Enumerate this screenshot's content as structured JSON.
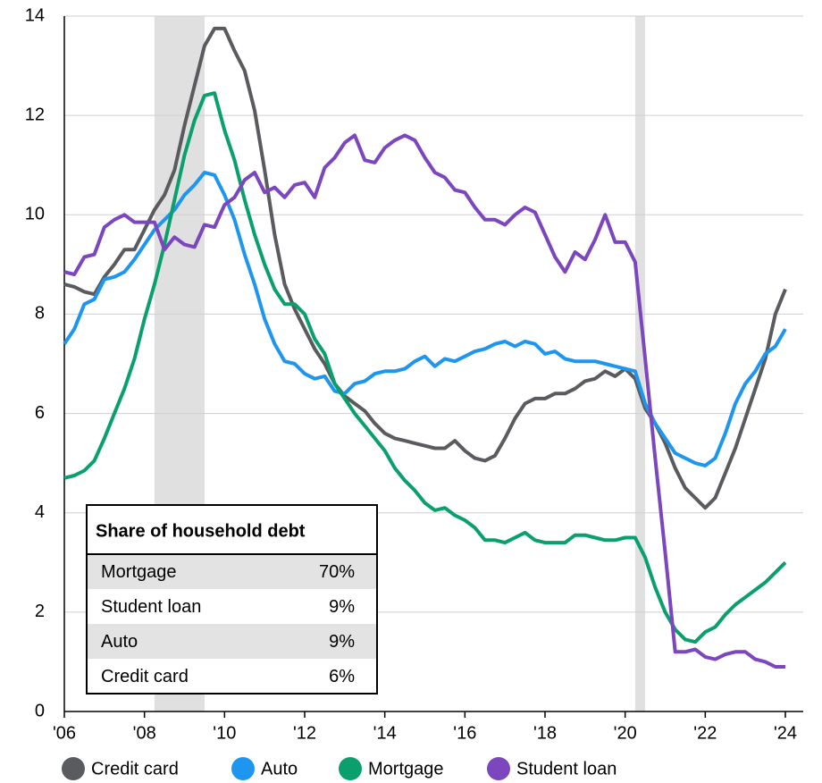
{
  "chart_data": {
    "type": "line",
    "x": [
      2006,
      2006.25,
      2006.5,
      2006.75,
      2007,
      2007.25,
      2007.5,
      2007.75,
      2008,
      2008.25,
      2008.5,
      2008.75,
      2009,
      2009.25,
      2009.5,
      2009.75,
      2010,
      2010.25,
      2010.5,
      2010.75,
      2011,
      2011.25,
      2011.5,
      2011.75,
      2012,
      2012.25,
      2012.5,
      2012.75,
      2013,
      2013.25,
      2013.5,
      2013.75,
      2014,
      2014.25,
      2014.5,
      2014.75,
      2015,
      2015.25,
      2015.5,
      2015.75,
      2016,
      2016.25,
      2016.5,
      2016.75,
      2017,
      2017.25,
      2017.5,
      2017.75,
      2018,
      2018.25,
      2018.5,
      2018.75,
      2019,
      2019.25,
      2019.5,
      2019.75,
      2020,
      2020.25,
      2020.5,
      2020.75,
      2021,
      2021.25,
      2021.5,
      2021.75,
      2022,
      2022.25,
      2022.5,
      2022.75,
      2023,
      2023.25,
      2023.5,
      2023.75,
      2024
    ],
    "series": [
      {
        "name": "Credit card",
        "color": "#595b5e",
        "values": [
          8.6,
          8.55,
          8.45,
          8.4,
          8.75,
          9.0,
          9.3,
          9.3,
          9.7,
          10.1,
          10.4,
          10.9,
          11.8,
          12.6,
          13.4,
          13.75,
          13.75,
          13.3,
          12.9,
          12.1,
          10.9,
          9.6,
          8.6,
          8.1,
          7.7,
          7.3,
          7.0,
          6.6,
          6.35,
          6.2,
          6.05,
          5.8,
          5.6,
          5.5,
          5.45,
          5.4,
          5.35,
          5.3,
          5.3,
          5.45,
          5.25,
          5.1,
          5.05,
          5.15,
          5.5,
          5.9,
          6.2,
          6.3,
          6.3,
          6.4,
          6.4,
          6.5,
          6.65,
          6.7,
          6.85,
          6.75,
          6.9,
          6.7,
          6.1,
          5.8,
          5.4,
          4.9,
          4.5,
          4.3,
          4.1,
          4.3,
          4.8,
          5.3,
          5.9,
          6.5,
          7.1,
          8.0,
          8.5
        ]
      },
      {
        "name": "Auto",
        "color": "#1e96f0",
        "values": [
          7.4,
          7.7,
          8.2,
          8.3,
          8.7,
          8.75,
          8.85,
          9.1,
          9.4,
          9.7,
          9.9,
          10.1,
          10.4,
          10.6,
          10.85,
          10.8,
          10.4,
          9.9,
          9.2,
          8.6,
          7.9,
          7.4,
          7.05,
          7.0,
          6.8,
          6.7,
          6.75,
          6.45,
          6.4,
          6.6,
          6.65,
          6.8,
          6.85,
          6.85,
          6.9,
          7.05,
          7.15,
          6.95,
          7.1,
          7.05,
          7.15,
          7.25,
          7.3,
          7.4,
          7.45,
          7.35,
          7.45,
          7.4,
          7.2,
          7.25,
          7.1,
          7.05,
          7.05,
          7.05,
          7.0,
          6.95,
          6.9,
          6.85,
          6.2,
          5.8,
          5.5,
          5.2,
          5.1,
          5.0,
          4.95,
          5.1,
          5.6,
          6.2,
          6.6,
          6.85,
          7.2,
          7.35,
          7.7
        ]
      },
      {
        "name": "Mortgage",
        "color": "#0aa06e",
        "values": [
          4.7,
          4.75,
          4.85,
          5.05,
          5.5,
          6.0,
          6.5,
          7.1,
          7.9,
          8.6,
          9.4,
          10.3,
          11.2,
          11.9,
          12.4,
          12.45,
          11.7,
          11.1,
          10.3,
          9.6,
          9.0,
          8.5,
          8.2,
          8.2,
          8.0,
          7.5,
          7.2,
          6.6,
          6.3,
          6.0,
          5.75,
          5.5,
          5.25,
          4.9,
          4.65,
          4.45,
          4.2,
          4.05,
          4.1,
          3.95,
          3.85,
          3.7,
          3.45,
          3.45,
          3.4,
          3.5,
          3.6,
          3.45,
          3.4,
          3.4,
          3.4,
          3.55,
          3.55,
          3.5,
          3.45,
          3.45,
          3.5,
          3.5,
          3.1,
          2.5,
          2.0,
          1.65,
          1.45,
          1.4,
          1.6,
          1.7,
          1.95,
          2.15,
          2.3,
          2.45,
          2.6,
          2.8,
          3.0
        ]
      },
      {
        "name": "Student loan",
        "color": "#7b46be",
        "values": [
          8.85,
          8.8,
          9.15,
          9.2,
          9.75,
          9.9,
          10.0,
          9.85,
          9.85,
          9.85,
          9.3,
          9.55,
          9.4,
          9.35,
          9.8,
          9.75,
          10.2,
          10.35,
          10.7,
          10.85,
          10.45,
          10.55,
          10.35,
          10.6,
          10.65,
          10.35,
          10.95,
          11.15,
          11.45,
          11.6,
          11.1,
          11.05,
          11.35,
          11.5,
          11.6,
          11.5,
          11.15,
          10.85,
          10.75,
          10.5,
          10.45,
          10.15,
          9.9,
          9.9,
          9.8,
          10.0,
          10.15,
          10.05,
          9.6,
          9.15,
          8.85,
          9.25,
          9.1,
          9.5,
          10.0,
          9.45,
          9.45,
          9.05,
          7.1,
          5.1,
          3.2,
          1.2,
          1.2,
          1.25,
          1.1,
          1.05,
          1.15,
          1.2,
          1.2,
          1.05,
          1.0,
          0.9,
          0.9
        ]
      }
    ],
    "xlim": [
      2006,
      2024
    ],
    "xticks": [
      {
        "value": 2006,
        "label": "'06"
      },
      {
        "value": 2008,
        "label": "'08"
      },
      {
        "value": 2010,
        "label": "'10"
      },
      {
        "value": 2012,
        "label": "'12"
      },
      {
        "value": 2014,
        "label": "'14"
      },
      {
        "value": 2016,
        "label": "'16"
      },
      {
        "value": 2018,
        "label": "'18"
      },
      {
        "value": 2020,
        "label": "'20"
      },
      {
        "value": 2022,
        "label": "'22"
      },
      {
        "value": 2024,
        "label": "'24"
      }
    ],
    "ylim": [
      0,
      14
    ],
    "yticks": [
      0,
      2,
      4,
      6,
      8,
      10,
      12,
      14
    ],
    "grid": true,
    "shaded_periods": [
      [
        2008.25,
        2009.5
      ],
      [
        2020.25,
        2020.5
      ]
    ],
    "inset": {
      "title": "Share of household debt",
      "categories": [
        "Mortgage",
        "Student loan",
        "Auto",
        "Credit card"
      ],
      "values": [
        70,
        9,
        9,
        6
      ],
      "value_labels": [
        "70%",
        "9%",
        "9%",
        "6%"
      ]
    }
  }
}
